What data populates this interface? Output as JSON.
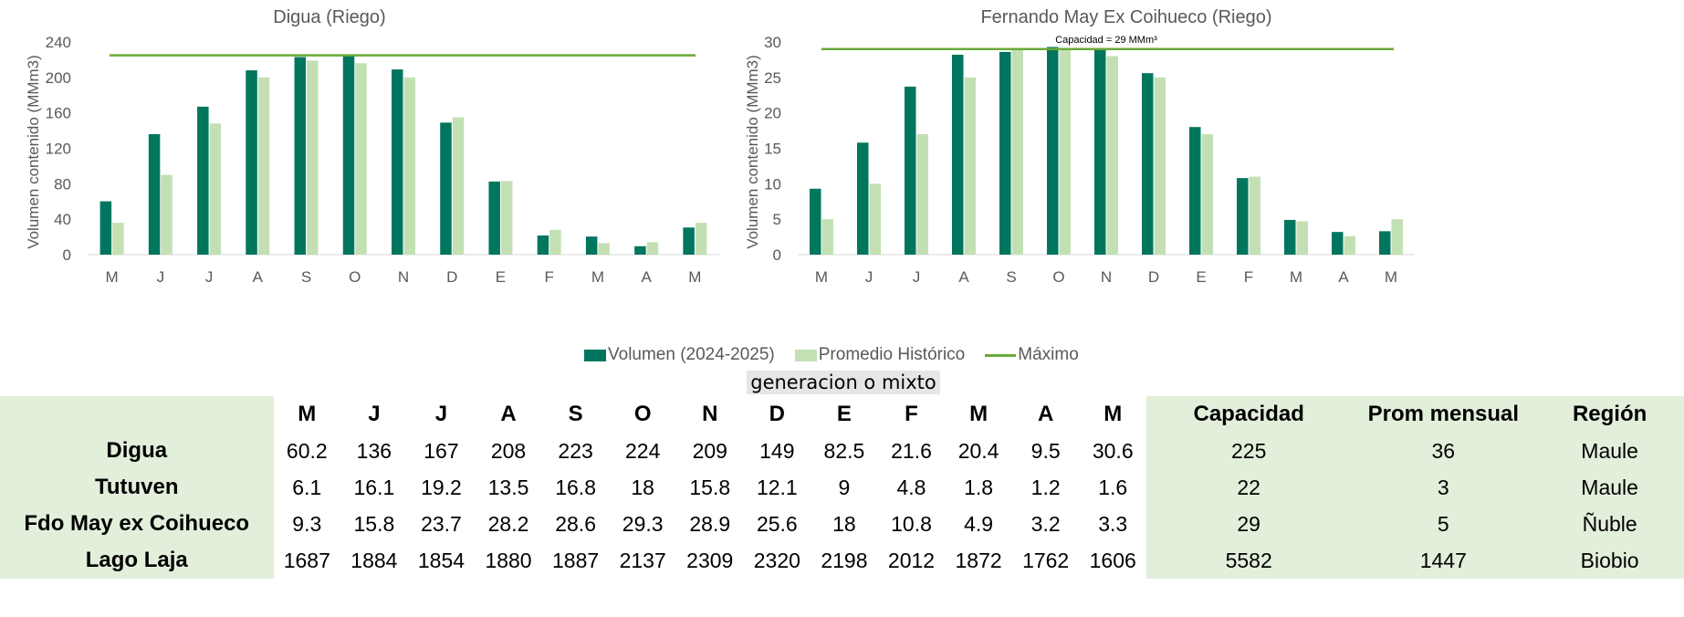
{
  "chart_data": [
    {
      "type": "bar",
      "title": "Digua (Riego)",
      "ylabel": "Volumen contenido (MMm3)",
      "ylim": [
        0,
        240
      ],
      "yticks": [
        0,
        40,
        80,
        120,
        160,
        200,
        240
      ],
      "categories": [
        "M",
        "J",
        "J",
        "A",
        "S",
        "O",
        "N",
        "D",
        "E",
        "F",
        "M",
        "A",
        "M"
      ],
      "series": [
        {
          "name": "Volumen (2024-2025)",
          "color": "#00765f",
          "values": [
            60.2,
            136,
            167,
            208,
            223,
            224,
            209,
            149,
            82.5,
            21.6,
            20.4,
            9.5,
            30.6
          ]
        },
        {
          "name": "Promedio Histórico",
          "color": "#c3e0b4",
          "values": [
            36,
            90,
            148,
            200,
            219,
            216,
            200,
            155,
            83,
            28,
            13,
            14,
            36
          ]
        }
      ],
      "max_line": {
        "name": "Máximo",
        "value": 225,
        "color": "#6aaa3a"
      },
      "grid": false
    },
    {
      "type": "bar",
      "title": "Fernando May Ex Coihueco (Riego)",
      "ylabel": "Volumen contenido (MMm3)",
      "ylim": [
        0,
        30
      ],
      "yticks": [
        0,
        5,
        10,
        15,
        20,
        25,
        30
      ],
      "categories": [
        "M",
        "J",
        "J",
        "A",
        "S",
        "O",
        "N",
        "D",
        "E",
        "F",
        "M",
        "A",
        "M"
      ],
      "series": [
        {
          "name": "Volumen (2024-2025)",
          "color": "#00765f",
          "values": [
            9.3,
            15.8,
            23.7,
            28.2,
            28.6,
            29.3,
            28.9,
            25.6,
            18,
            10.8,
            4.9,
            3.2,
            3.3
          ]
        },
        {
          "name": "Promedio Histórico",
          "color": "#c3e0b4",
          "values": [
            5,
            10,
            17,
            25,
            29,
            29,
            28,
            25,
            17,
            11,
            4.7,
            2.6,
            5
          ]
        }
      ],
      "max_line": {
        "name": "Máximo",
        "value": 29,
        "color": "#6aaa3a",
        "label": "Capacidad = 29 MMm³"
      },
      "grid": false
    }
  ],
  "legend": {
    "volumen": "Volumen (2024-2025)",
    "promedio": "Promedio Histórico",
    "maximo": "Máximo"
  },
  "note": "generacion o mixto",
  "table": {
    "headers": [
      "",
      "M",
      "J",
      "J",
      "A",
      "S",
      "O",
      "N",
      "D",
      "E",
      "F",
      "M",
      "A",
      "M",
      "Capacidad",
      "Prom mensual",
      "Región"
    ],
    "rows": [
      [
        "Digua",
        "60.2",
        "136",
        "167",
        "208",
        "223",
        "224",
        "209",
        "149",
        "82.5",
        "21.6",
        "20.4",
        "9.5",
        "30.6",
        "225",
        "36",
        "Maule"
      ],
      [
        "Tutuven",
        "6.1",
        "16.1",
        "19.2",
        "13.5",
        "16.8",
        "18",
        "15.8",
        "12.1",
        "9",
        "4.8",
        "1.8",
        "1.2",
        "1.6",
        "22",
        "3",
        "Maule"
      ],
      [
        "Fdo May ex Coihueco",
        "9.3",
        "15.8",
        "23.7",
        "28.2",
        "28.6",
        "29.3",
        "28.9",
        "25.6",
        "18",
        "10.8",
        "4.9",
        "3.2",
        "3.3",
        "29",
        "5",
        "Ñuble"
      ],
      [
        "Lago Laja",
        "1687",
        "1884",
        "1854",
        "1880",
        "1887",
        "2137",
        "2309",
        "2320",
        "2198",
        "2012",
        "1872",
        "1762",
        "1606",
        "5582",
        "1447",
        "Biobio"
      ]
    ]
  }
}
